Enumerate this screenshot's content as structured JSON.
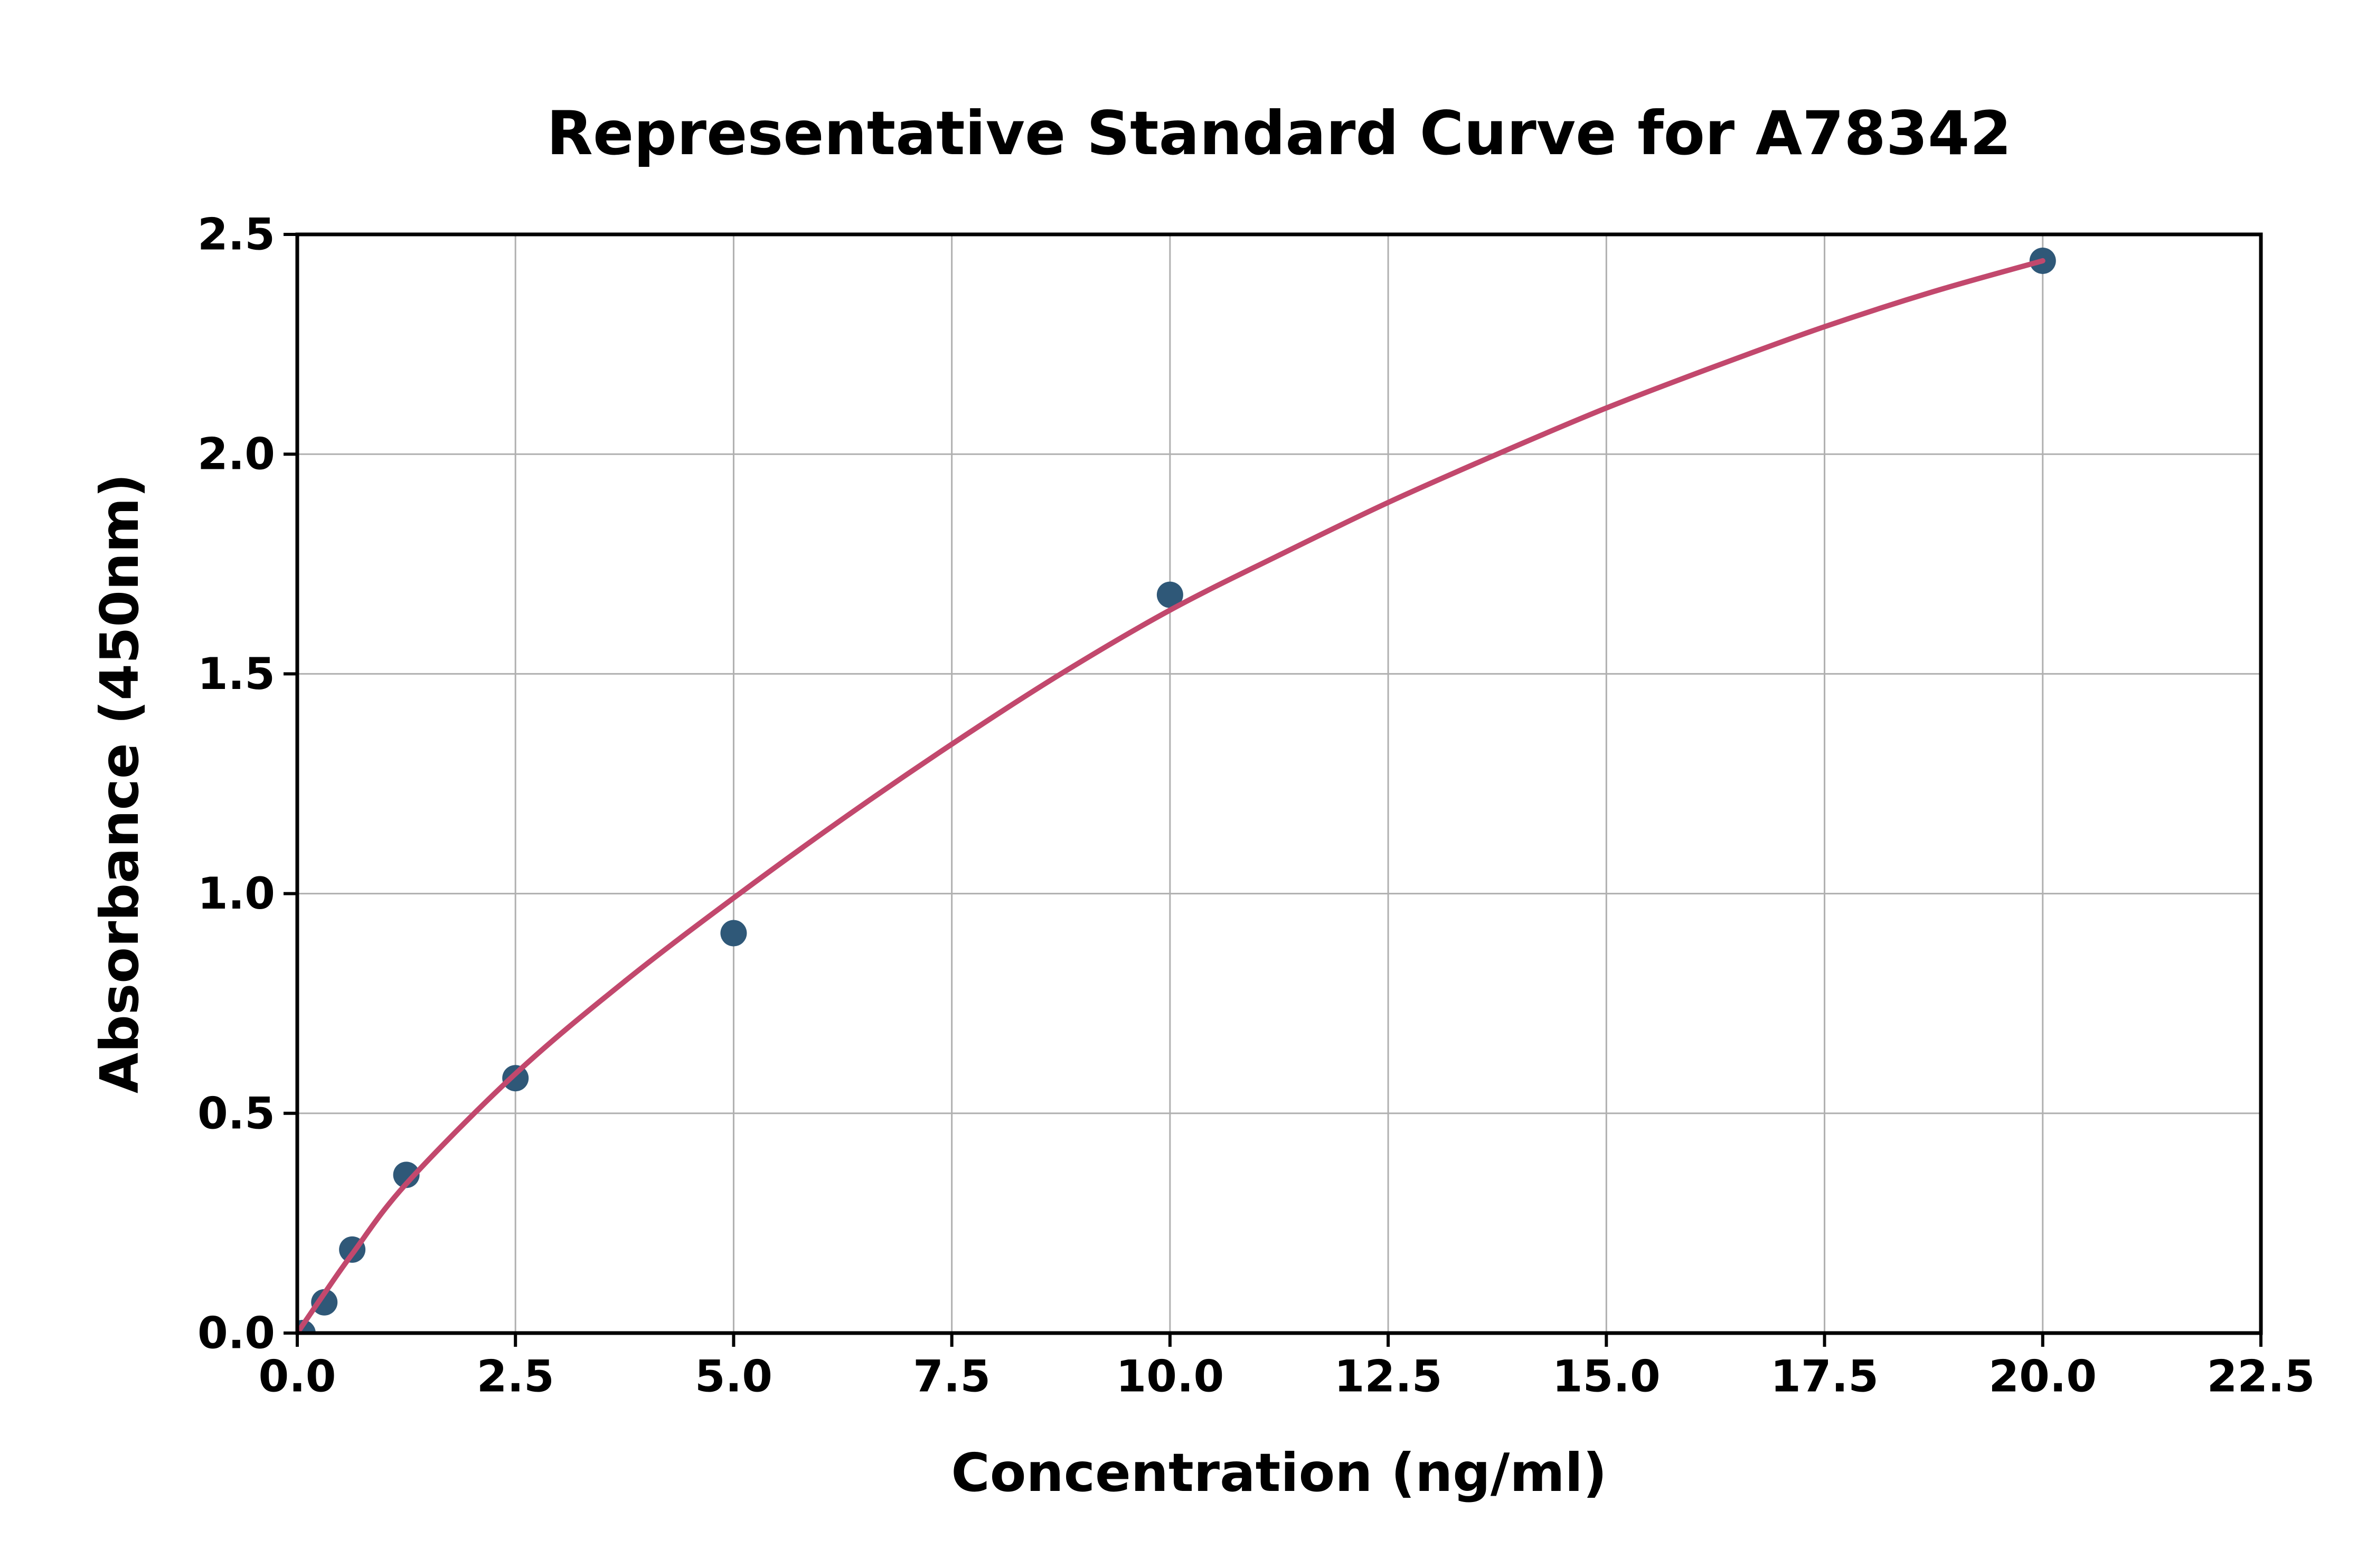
{
  "figure": {
    "background": "#ffffff"
  },
  "chart_data": {
    "type": "scatter",
    "title": "Representative Standard Curve for A78342",
    "xlabel": "Concentration (ng/ml)",
    "ylabel": "Absorbance (450nm)",
    "xlim": [
      0,
      22.5
    ],
    "ylim": [
      0,
      2.5
    ],
    "x_ticks": [
      0.0,
      2.5,
      5.0,
      7.5,
      10.0,
      12.5,
      15.0,
      17.5,
      20.0,
      22.5
    ],
    "x_tick_labels": [
      "0.0",
      "2.5",
      "5.0",
      "7.5",
      "10.0",
      "12.5",
      "15.0",
      "17.5",
      "20.0",
      "22.5"
    ],
    "y_ticks": [
      0.0,
      0.5,
      1.0,
      1.5,
      2.0,
      2.5
    ],
    "y_tick_labels": [
      "0.0",
      "0.5",
      "1.0",
      "1.5",
      "2.0",
      "2.5"
    ],
    "grid": true,
    "legend": "none",
    "points": [
      {
        "x": 0.06,
        "y": 0.0
      },
      {
        "x": 0.31,
        "y": 0.07
      },
      {
        "x": 0.63,
        "y": 0.19
      },
      {
        "x": 1.25,
        "y": 0.36
      },
      {
        "x": 2.5,
        "y": 0.58
      },
      {
        "x": 5.0,
        "y": 0.91
      },
      {
        "x": 10.0,
        "y": 1.68
      },
      {
        "x": 20.0,
        "y": 2.44
      }
    ],
    "fit_curve": [
      [
        0,
        0
      ],
      [
        0.31,
        0.09
      ],
      [
        0.63,
        0.18
      ],
      [
        1.25,
        0.34
      ],
      [
        2.5,
        0.59
      ],
      [
        3.75,
        0.8
      ],
      [
        5,
        0.99
      ],
      [
        6.25,
        1.17
      ],
      [
        7.5,
        1.34
      ],
      [
        8.75,
        1.5
      ],
      [
        10,
        1.645
      ],
      [
        11.25,
        1.77
      ],
      [
        12.5,
        1.89
      ],
      [
        13.75,
        2.0
      ],
      [
        15,
        2.105
      ],
      [
        16.25,
        2.2
      ],
      [
        17.5,
        2.29
      ],
      [
        18.75,
        2.37
      ],
      [
        20,
        2.44
      ]
    ],
    "colors": {
      "marker": "#2F5878",
      "curve": "#C2486D",
      "grid": "#B0B0B0",
      "axis": "#000000",
      "text": "#000000"
    }
  }
}
